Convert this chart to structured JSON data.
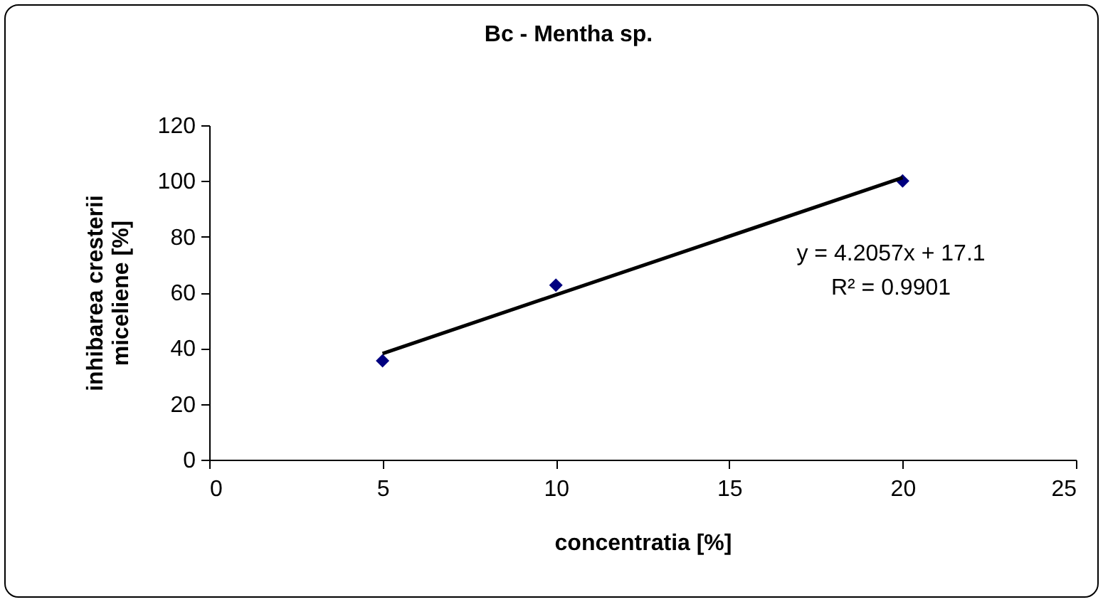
{
  "chart_data": {
    "type": "scatter",
    "title": "Bc - Mentha sp.",
    "xlabel": "concentratia [%]",
    "ylabel": "inhibarea cresterii\nmiceliene [%]",
    "x": [
      5,
      10,
      20
    ],
    "series": [
      {
        "color": "#000080",
        "values": [
          35.5,
          62.6,
          100
        ]
      },
      {
        "type": "line",
        "marker": "none",
        "color": "#000000",
        "x": [
          5,
          20
        ],
        "values": [
          38.1,
          101.2
        ]
      }
    ],
    "annotations": [
      "y = 4.2057x + 17.1",
      "R² = 0.9901"
    ],
    "xlim": [
      0,
      25
    ],
    "xticks": [
      0,
      5,
      10,
      15,
      20,
      25
    ],
    "ylim": [
      0,
      120
    ],
    "yticks": [
      0,
      20,
      40,
      60,
      80,
      100,
      120
    ],
    "grid": false,
    "marker": "diamond",
    "line_style": "solid"
  }
}
